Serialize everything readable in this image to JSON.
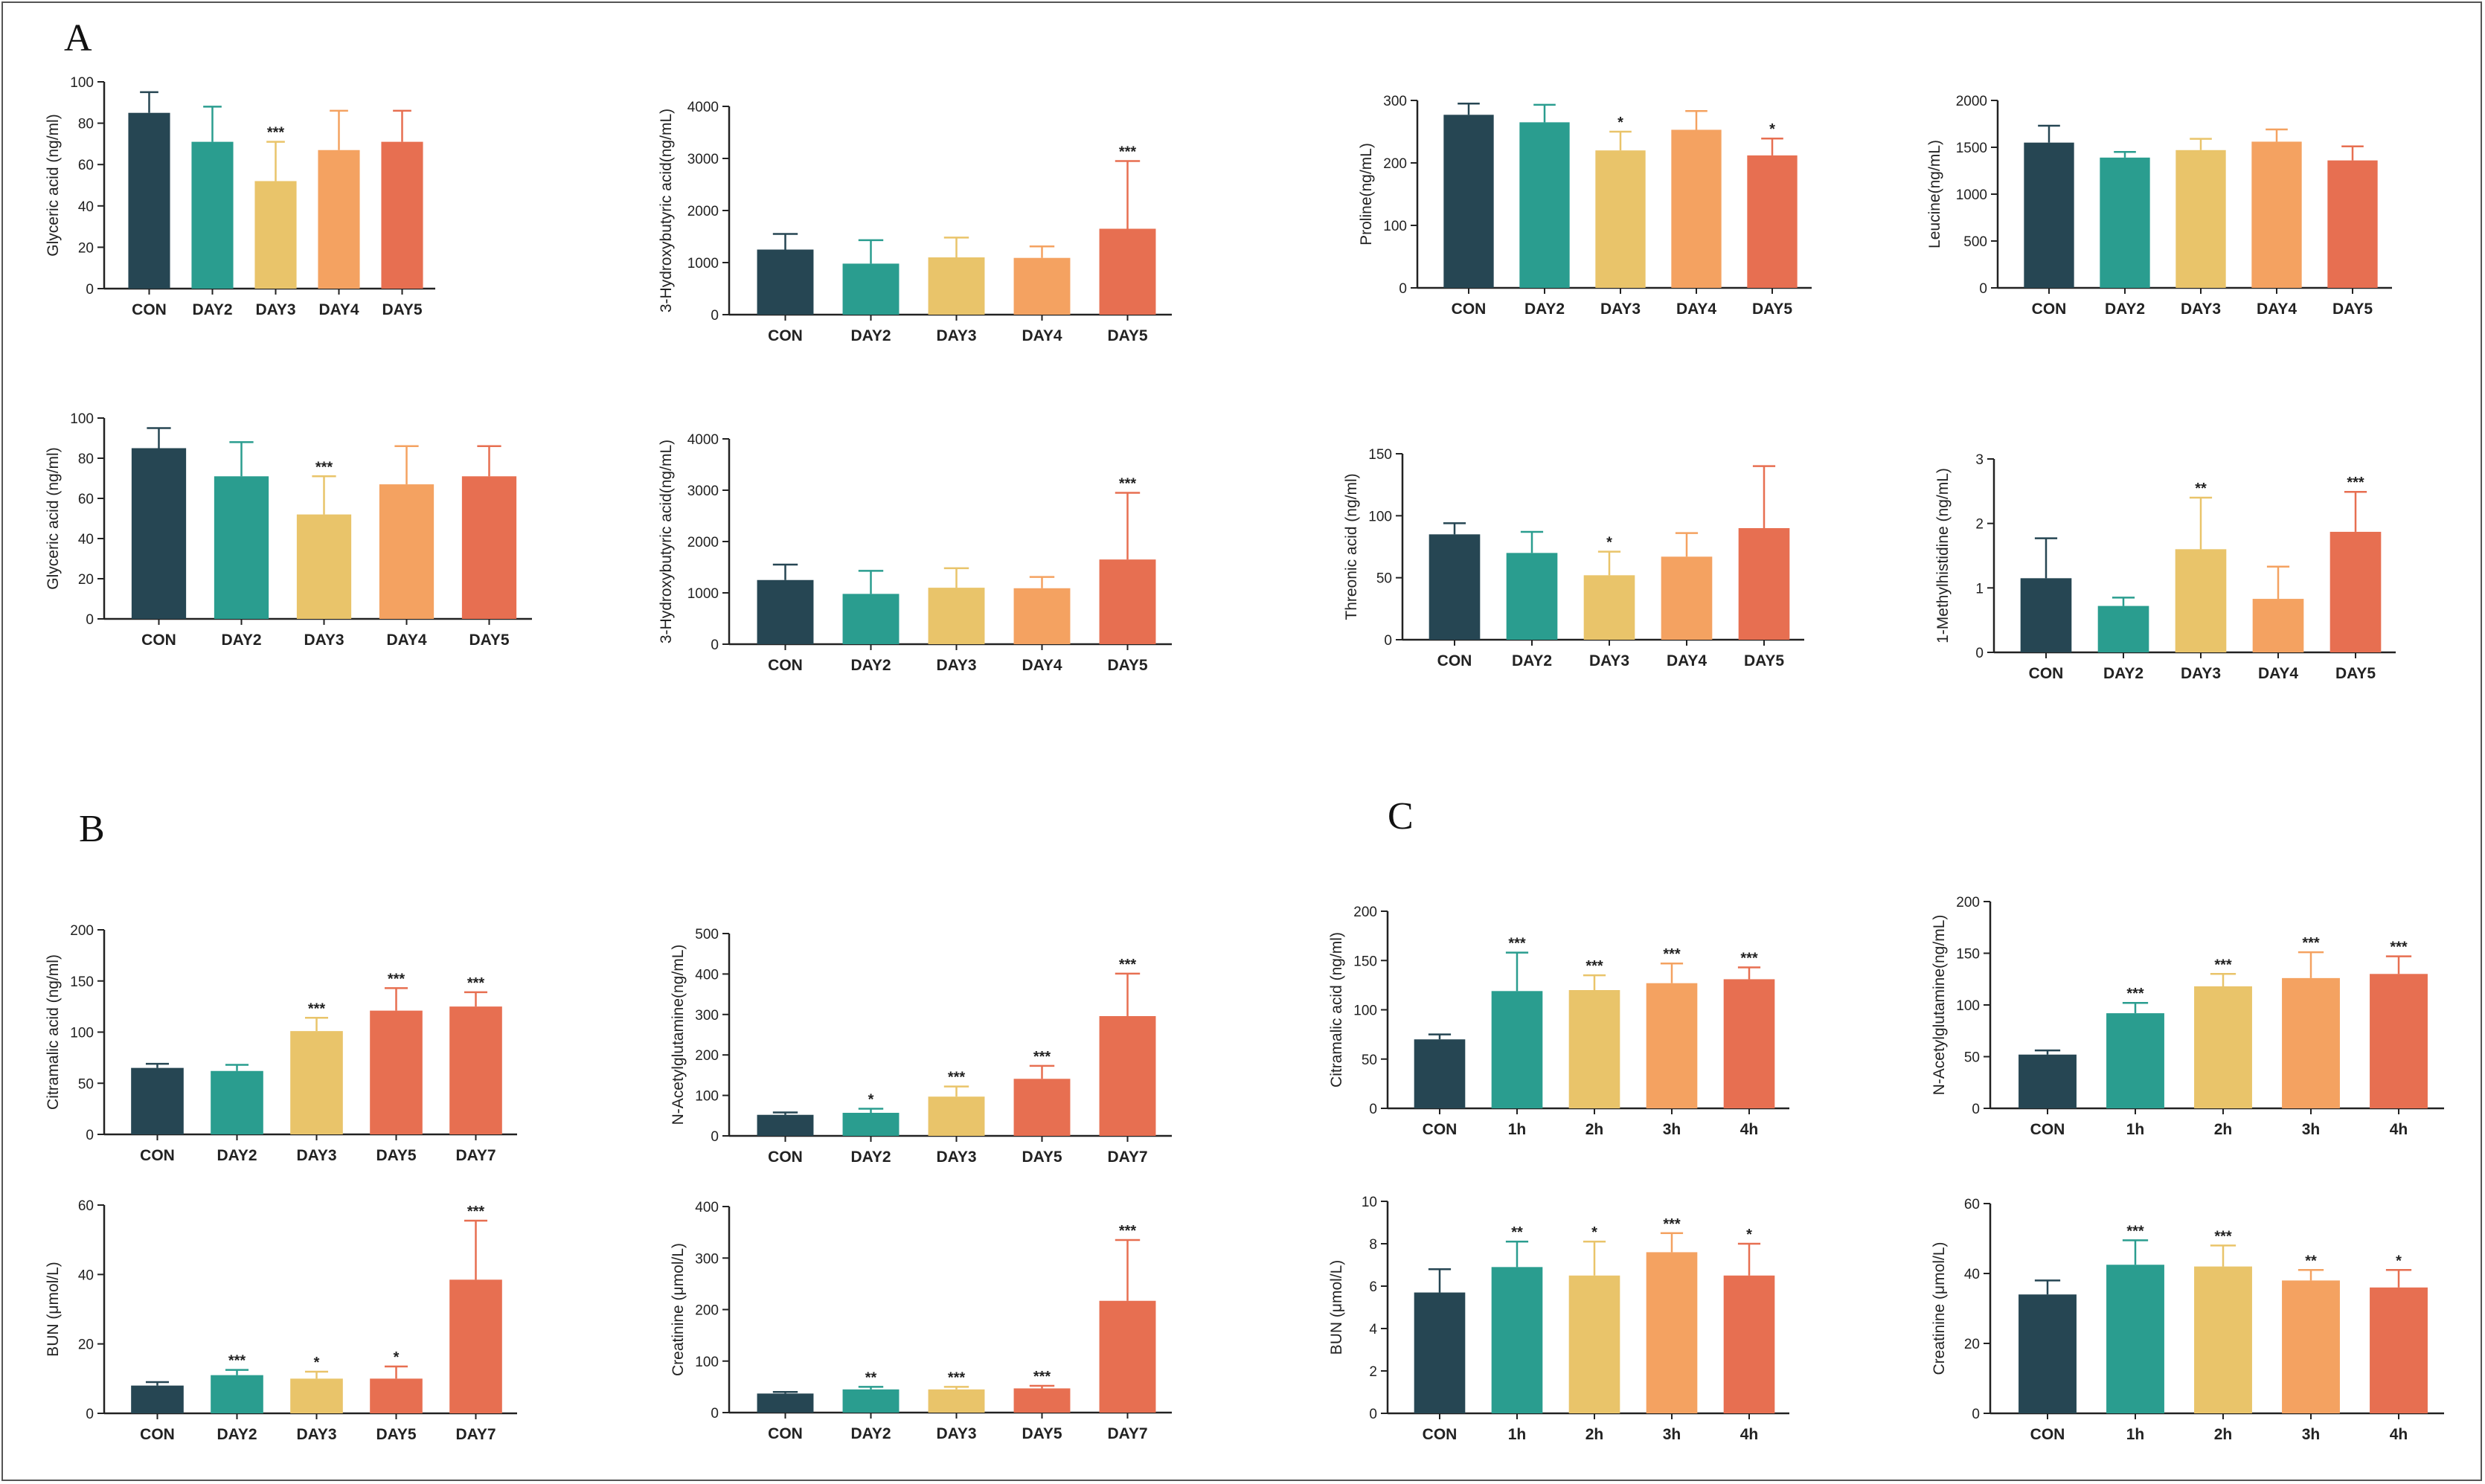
{
  "panel_labels": [
    "A",
    "B",
    "C"
  ],
  "colors": {
    "CON": "#264653",
    "DAY2": "#2a9d8f",
    "DAY3": "#e9c46a",
    "DAY4": "#f4a261",
    "DAY5": "#e76f51",
    "DAY7": "#e76f51",
    "1h": "#2a9d8f",
    "2h": "#e9c46a",
    "3h": "#f4a261",
    "4h": "#e76f51"
  },
  "chart_data": [
    {
      "type": "bar",
      "ylabel": "Glyceric acid (ng/ml)",
      "ylim": [
        0,
        100
      ],
      "yticks": [
        0,
        20,
        40,
        60,
        80,
        100
      ],
      "categories": [
        "CON",
        "DAY2",
        "DAY3",
        "DAY4",
        "DAY5"
      ],
      "values": [
        85,
        71,
        52,
        67,
        71
      ],
      "errors": [
        10,
        17,
        19,
        19,
        15
      ],
      "sig": [
        "",
        "",
        "***",
        "",
        ""
      ]
    },
    {
      "type": "bar",
      "ylabel": "3-Hydroxybutyric acid(ng/mL)",
      "ylim": [
        0,
        4000
      ],
      "yticks": [
        0,
        1000,
        2000,
        3000,
        4000
      ],
      "categories": [
        "CON",
        "DAY2",
        "DAY3",
        "DAY4",
        "DAY5"
      ],
      "values": [
        1250,
        980,
        1100,
        1090,
        1650
      ],
      "errors": [
        300,
        450,
        380,
        220,
        1300
      ],
      "sig": [
        "",
        "",
        "",
        "",
        "***"
      ]
    },
    {
      "type": "bar",
      "ylabel": "Proline(ng/mL)",
      "ylim": [
        0,
        300
      ],
      "yticks": [
        0,
        100,
        200,
        300
      ],
      "categories": [
        "CON",
        "DAY2",
        "DAY3",
        "DAY4",
        "DAY5"
      ],
      "values": [
        277,
        265,
        220,
        253,
        212
      ],
      "errors": [
        18,
        28,
        30,
        30,
        27
      ],
      "sig": [
        "",
        "",
        "*",
        "",
        "*"
      ]
    },
    {
      "type": "bar",
      "ylabel": "Leucine(ng/mL)",
      "ylim": [
        0,
        2000
      ],
      "yticks": [
        0,
        500,
        1000,
        1500,
        2000
      ],
      "categories": [
        "CON",
        "DAY2",
        "DAY3",
        "DAY4",
        "DAY5"
      ],
      "values": [
        1550,
        1390,
        1470,
        1560,
        1360
      ],
      "errors": [
        180,
        60,
        120,
        130,
        150
      ],
      "sig": [
        "",
        "",
        "",
        "",
        ""
      ]
    },
    {
      "type": "bar",
      "ylabel": "Glyceric acid (ng/ml)",
      "ylim": [
        0,
        100
      ],
      "yticks": [
        0,
        20,
        40,
        60,
        80,
        100
      ],
      "categories": [
        "CON",
        "DAY2",
        "DAY3",
        "DAY4",
        "DAY5"
      ],
      "values": [
        85,
        71,
        52,
        67,
        71
      ],
      "errors": [
        10,
        17,
        19,
        19,
        15
      ],
      "sig": [
        "",
        "",
        "***",
        "",
        ""
      ]
    },
    {
      "type": "bar",
      "ylabel": "3-Hydroxybutyric acid(ng/mL)",
      "ylim": [
        0,
        4000
      ],
      "yticks": [
        0,
        1000,
        2000,
        3000,
        4000
      ],
      "categories": [
        "CON",
        "DAY2",
        "DAY3",
        "DAY4",
        "DAY5"
      ],
      "values": [
        1250,
        980,
        1100,
        1090,
        1650
      ],
      "errors": [
        300,
        450,
        380,
        220,
        1300
      ],
      "sig": [
        "",
        "",
        "",
        "",
        "***"
      ]
    },
    {
      "type": "bar",
      "ylabel": "Threonic acid (ng/ml)",
      "ylim": [
        0,
        150
      ],
      "yticks": [
        0,
        50,
        100,
        150
      ],
      "categories": [
        "CON",
        "DAY2",
        "DAY3",
        "DAY4",
        "DAY5"
      ],
      "values": [
        85,
        70,
        52,
        67,
        90
      ],
      "errors": [
        9,
        17,
        19,
        19,
        50
      ],
      "sig": [
        "",
        "",
        "*",
        "",
        ""
      ]
    },
    {
      "type": "bar",
      "ylabel": "1-Methylhistidine  (ng/mL)",
      "ylim": [
        0,
        3
      ],
      "yticks": [
        0,
        1,
        2,
        3
      ],
      "categories": [
        "CON",
        "DAY2",
        "DAY3",
        "DAY4",
        "DAY5"
      ],
      "values": [
        1.15,
        0.72,
        1.6,
        0.83,
        1.87
      ],
      "errors": [
        0.62,
        0.13,
        0.8,
        0.5,
        0.62
      ],
      "sig": [
        "",
        "",
        "**",
        "",
        "***"
      ]
    },
    {
      "type": "bar",
      "ylabel": "Citramalic acid (ng/ml)",
      "ylim": [
        0,
        200
      ],
      "yticks": [
        0,
        50,
        100,
        150,
        200
      ],
      "categories": [
        "CON",
        "DAY2",
        "DAY3",
        "DAY5",
        "DAY7"
      ],
      "values": [
        65,
        62,
        101,
        121,
        125
      ],
      "errors": [
        4,
        6,
        13,
        22,
        14
      ],
      "sig": [
        "",
        "",
        "***",
        "***",
        "***"
      ]
    },
    {
      "type": "bar",
      "ylabel": "N-Acetylglutamine(ng/mL)",
      "ylim": [
        0,
        500
      ],
      "yticks": [
        0,
        100,
        200,
        300,
        400,
        500
      ],
      "categories": [
        "CON",
        "DAY2",
        "DAY3",
        "DAY5",
        "DAY7"
      ],
      "values": [
        52,
        57,
        97,
        141,
        296
      ],
      "errors": [
        6,
        10,
        25,
        32,
        105
      ],
      "sig": [
        "",
        "*",
        "***",
        "***",
        "***"
      ]
    },
    {
      "type": "bar",
      "ylabel": "BUN (μmol/L)",
      "ylim": [
        0,
        60
      ],
      "yticks": [
        0,
        20,
        40,
        60
      ],
      "categories": [
        "CON",
        "DAY2",
        "DAY3",
        "DAY5",
        "DAY7"
      ],
      "values": [
        8,
        11,
        10,
        10,
        38.5
      ],
      "errors": [
        1,
        1.5,
        2,
        3.5,
        17
      ],
      "sig": [
        "",
        "***",
        "*",
        "*",
        "***"
      ]
    },
    {
      "type": "bar",
      "ylabel": "Creatinine (μmol/L)",
      "ylim": [
        0,
        400
      ],
      "yticks": [
        0,
        100,
        200,
        300,
        400
      ],
      "categories": [
        "CON",
        "DAY2",
        "DAY3",
        "DAY5",
        "DAY7"
      ],
      "values": [
        37,
        45,
        45,
        47,
        217
      ],
      "errors": [
        3,
        5,
        5,
        5,
        118
      ],
      "sig": [
        "",
        "**",
        "***",
        "***",
        "***"
      ]
    },
    {
      "type": "bar",
      "ylabel": "Citramalic acid (ng/ml)",
      "ylim": [
        0,
        200
      ],
      "yticks": [
        0,
        50,
        100,
        150,
        200
      ],
      "categories": [
        "CON",
        "1h",
        "2h",
        "3h",
        "4h"
      ],
      "values": [
        70,
        119,
        120,
        127,
        131
      ],
      "errors": [
        5,
        39,
        15,
        20,
        12
      ],
      "sig": [
        "",
        "***",
        "***",
        "***",
        "***"
      ]
    },
    {
      "type": "bar",
      "ylabel": "N-Acetylglutamine(ng/mL)",
      "ylim": [
        0,
        200
      ],
      "yticks": [
        0,
        50,
        100,
        150,
        200
      ],
      "categories": [
        "CON",
        "1h",
        "2h",
        "3h",
        "4h"
      ],
      "values": [
        52,
        92,
        118,
        126,
        130
      ],
      "errors": [
        4,
        10,
        12,
        25,
        17
      ],
      "sig": [
        "",
        "***",
        "***",
        "***",
        "***"
      ]
    },
    {
      "type": "bar",
      "ylabel": "BUN (μmol/L)",
      "ylim": [
        0,
        10
      ],
      "yticks": [
        0,
        2,
        4,
        6,
        8,
        10
      ],
      "categories": [
        "CON",
        "1h",
        "2h",
        "3h",
        "4h"
      ],
      "values": [
        5.7,
        6.9,
        6.5,
        7.6,
        6.5
      ],
      "errors": [
        1.1,
        1.2,
        1.6,
        0.9,
        1.5
      ],
      "sig": [
        "",
        "**",
        "*",
        "***",
        "*"
      ]
    },
    {
      "type": "bar",
      "ylabel": "Creatinine (μmol/L)",
      "ylim": [
        0,
        60
      ],
      "yticks": [
        0,
        20,
        40,
        60
      ],
      "categories": [
        "CON",
        "1h",
        "2h",
        "3h",
        "4h"
      ],
      "values": [
        34,
        42.5,
        42,
        38,
        36
      ],
      "errors": [
        4,
        7,
        6,
        3,
        5
      ],
      "sig": [
        "",
        "***",
        "***",
        "**",
        "*"
      ]
    }
  ]
}
